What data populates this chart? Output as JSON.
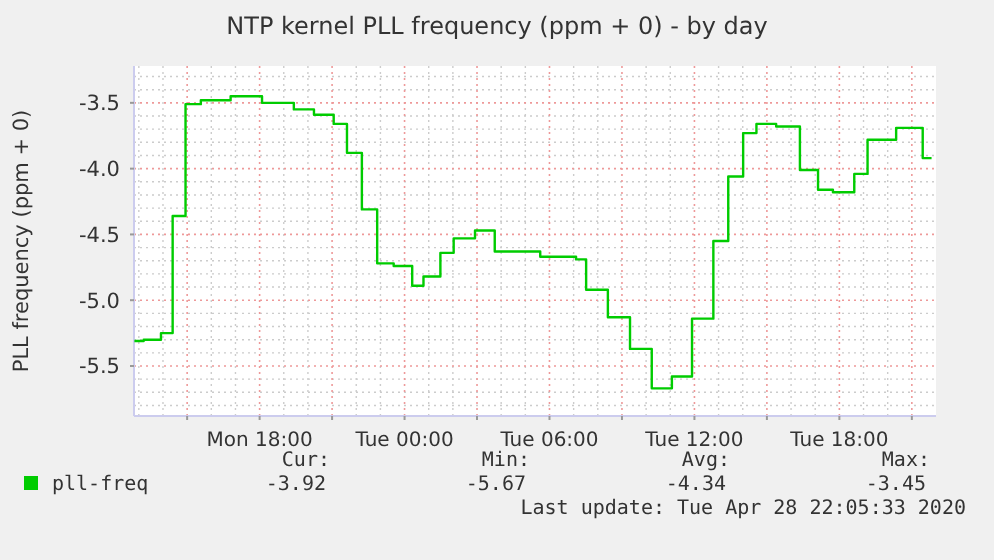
{
  "chart_data": {
    "type": "step",
    "title": "NTP kernel PLL frequency (ppm + 0) - by day",
    "ylabel": "PLL frequency (ppm + 0)",
    "xlim": [
      "2020-04-27T12:48",
      "2020-04-28T22:00"
    ],
    "xticks": [
      {
        "value": "2020-04-27T15:00",
        "label": null
      },
      {
        "value": "2020-04-27T18:00",
        "label": "Mon 18:00"
      },
      {
        "value": "2020-04-27T21:00",
        "label": null
      },
      {
        "value": "2020-04-28T00:00",
        "label": "Tue 00:00"
      },
      {
        "value": "2020-04-28T03:00",
        "label": null
      },
      {
        "value": "2020-04-28T06:00",
        "label": "Tue 06:00"
      },
      {
        "value": "2020-04-28T09:00",
        "label": null
      },
      {
        "value": "2020-04-28T12:00",
        "label": "Tue 12:00"
      },
      {
        "value": "2020-04-28T15:00",
        "label": null
      },
      {
        "value": "2020-04-28T18:00",
        "label": "Tue 18:00"
      },
      {
        "value": "2020-04-28T21:00",
        "label": null
      }
    ],
    "ylim": [
      -5.88,
      -3.22
    ],
    "yticks": [
      {
        "value": -5.5,
        "label": "-5.5"
      },
      {
        "value": -5,
        "label": "-5.0"
      },
      {
        "value": -4.5,
        "label": "-4.5"
      },
      {
        "value": -4,
        "label": "-4.0"
      },
      {
        "value": -3.5,
        "label": "-3.5"
      }
    ],
    "grid": true,
    "legend": "bottom",
    "series": [
      {
        "name": "pll-freq",
        "color": "#00cc00",
        "x": [
          "2020-04-27T12:49",
          "2020-04-27T13:12",
          "2020-04-27T13:55",
          "2020-04-27T14:24",
          "2020-04-27T14:56",
          "2020-04-27T15:34",
          "2020-04-27T16:48",
          "2020-04-27T18:06",
          "2020-04-27T19:25",
          "2020-04-27T20:15",
          "2020-04-27T21:04",
          "2020-04-27T21:37",
          "2020-04-27T22:14",
          "2020-04-27T22:52",
          "2020-04-27T23:33",
          "2020-04-28T00:19",
          "2020-04-28T00:47",
          "2020-04-28T01:29",
          "2020-04-28T02:02",
          "2020-04-28T02:55",
          "2020-04-28T03:44",
          "2020-04-28T05:37",
          "2020-04-28T07:06",
          "2020-04-28T07:31",
          "2020-04-28T08:25",
          "2020-04-28T09:20",
          "2020-04-28T10:14",
          "2020-04-28T11:04",
          "2020-04-28T11:54",
          "2020-04-28T12:47",
          "2020-04-28T13:24",
          "2020-04-28T14:01",
          "2020-04-28T14:34",
          "2020-04-28T15:23",
          "2020-04-28T16:22",
          "2020-04-28T17:07",
          "2020-04-28T17:44",
          "2020-04-28T18:37",
          "2020-04-28T19:10",
          "2020-04-28T20:21",
          "2020-04-28T21:27",
          "2020-04-28T21:49"
        ],
        "values": [
          -5.31,
          -5.3,
          -5.25,
          -4.36,
          -3.51,
          -3.48,
          -3.45,
          -3.5,
          -3.55,
          -3.59,
          -3.66,
          -3.88,
          -4.31,
          -4.72,
          -4.74,
          -4.89,
          -4.82,
          -4.64,
          -4.53,
          -4.47,
          -4.63,
          -4.67,
          -4.69,
          -4.92,
          -5.13,
          -5.37,
          -5.67,
          -5.58,
          -5.14,
          -4.55,
          -4.06,
          -3.73,
          -3.66,
          -3.68,
          -4.01,
          -4.16,
          -4.18,
          -4.04,
          -3.78,
          -3.69,
          -3.92,
          -3.92
        ]
      }
    ],
    "annotations": [
      "Cur:",
      "Min:",
      "Avg:",
      "Max:",
      "-3.92",
      "-5.67",
      "-4.34",
      "-3.45",
      "Last update: Tue Apr 28 22:05:33 2020"
    ]
  }
}
